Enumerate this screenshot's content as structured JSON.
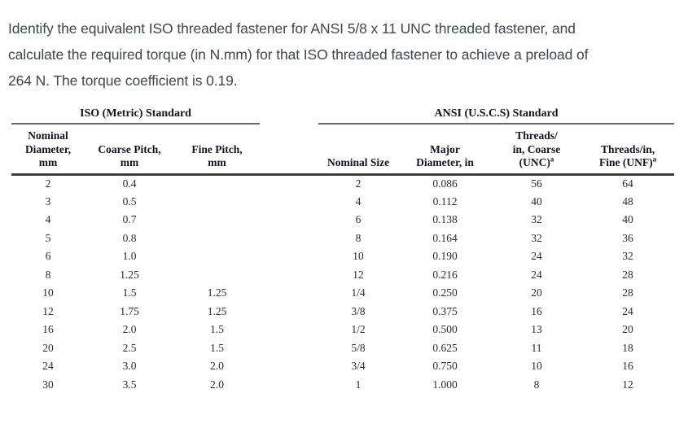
{
  "question": {
    "lines": [
      "Identify the equivalent ISO threaded fastener for ANSI 5/8 x 11 UNC threaded fastener, and",
      "calculate the required torque (in N.mm) for that ISO threaded fastener to achieve a preload of",
      "264 N. The torque coefficient is 0.19."
    ]
  },
  "table": {
    "group_titles": [
      "ISO (Metric) Standard",
      "ANSI (U.S.C.S) Standard"
    ],
    "columns": [
      {
        "id": "iso-nominal-diameter",
        "lines": [
          "Nominal",
          "Diameter,",
          "mm"
        ]
      },
      {
        "id": "iso-coarse-pitch",
        "lines": [
          "Coarse Pitch,",
          "mm"
        ]
      },
      {
        "id": "iso-fine-pitch",
        "lines": [
          "Fine Pitch,",
          "mm"
        ]
      },
      {
        "id": "ansi-nominal-size",
        "lines": [
          "Nominal Size"
        ]
      },
      {
        "id": "ansi-major-diameter",
        "lines": [
          "Major",
          "Diameter, in"
        ]
      },
      {
        "id": "ansi-threads-coarse",
        "lines": [
          "Threads/",
          "in, Coarse",
          "(UNC)^a"
        ]
      },
      {
        "id": "ansi-threads-fine",
        "lines": [
          "Threads/in,",
          "Fine (UNF)^a"
        ]
      }
    ],
    "rows": [
      [
        "2",
        "0.4",
        "",
        "2",
        "0.086",
        "56",
        "64"
      ],
      [
        "3",
        "0.5",
        "",
        "4",
        "0.112",
        "40",
        "48"
      ],
      [
        "4",
        "0.7",
        "",
        "6",
        "0.138",
        "32",
        "40"
      ],
      [
        "5",
        "0.8",
        "",
        "8",
        "0.164",
        "32",
        "36"
      ],
      [
        "6",
        "1.0",
        "",
        "10",
        "0.190",
        "24",
        "32"
      ],
      [
        "8",
        "1.25",
        "",
        "12",
        "0.216",
        "24",
        "28"
      ],
      [
        "10",
        "1.5",
        "1.25",
        "1/4",
        "0.250",
        "20",
        "28"
      ],
      [
        "12",
        "1.75",
        "1.25",
        "3/8",
        "0.375",
        "16",
        "24"
      ],
      [
        "16",
        "2.0",
        "1.5",
        "1/2",
        "0.500",
        "13",
        "20"
      ],
      [
        "20",
        "2.5",
        "1.5",
        "5/8",
        "0.625",
        "11",
        "18"
      ],
      [
        "24",
        "3.0",
        "2.0",
        "3/4",
        "0.750",
        "10",
        "16"
      ],
      [
        "30",
        "3.5",
        "2.0",
        "1",
        "1.000",
        "8",
        "12"
      ]
    ]
  }
}
